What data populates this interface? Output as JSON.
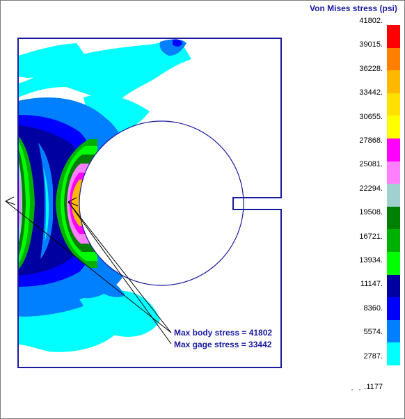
{
  "legend": {
    "title": "Von Mises stress (psi)",
    "values": [
      "41802.",
      "39015.",
      "36228.",
      "33442.",
      "30655.",
      "27868.",
      "25081.",
      "22294.",
      "19508.",
      "16721.",
      "13934.",
      "11147.",
      "8360.",
      "5574.",
      "2787.",
      ".1177"
    ],
    "colors": [
      "#ff0000",
      "#ff8000",
      "#ffb800",
      "#ffe000",
      "#ffff00",
      "#ff00ff",
      "#ff80ff",
      "#a0d0d0",
      "#008000",
      "#00b000",
      "#00ff00",
      "#0000a0",
      "#0000ff",
      "#0080ff",
      "#00ffff"
    ]
  },
  "annotations": {
    "max_body": "Max body stress = 41802",
    "max_gage": "Max gage stress = 33442"
  }
}
